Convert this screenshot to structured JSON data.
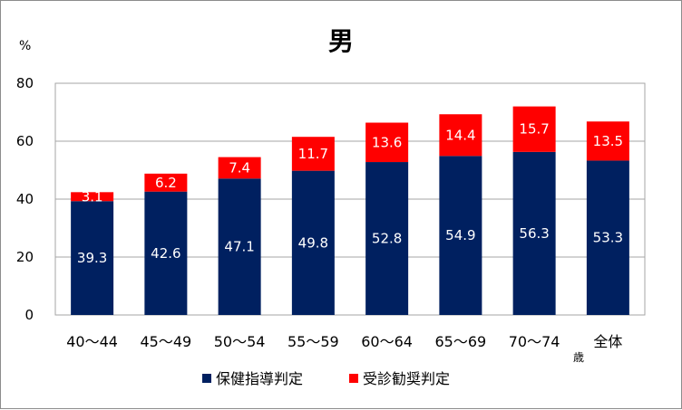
{
  "chart_data": {
    "type": "bar",
    "stacked": true,
    "title": "男",
    "ylabel": "%",
    "x_unit": "歳",
    "categories": [
      "40～44",
      "45～49",
      "50～54",
      "55～59",
      "60～64",
      "65～69",
      "70～74",
      "全体"
    ],
    "series": [
      {
        "name": "保健指導判定",
        "color": "#002060",
        "values": [
          39.3,
          42.6,
          47.1,
          49.8,
          52.8,
          54.9,
          56.3,
          53.3
        ]
      },
      {
        "name": "受診勧奨判定",
        "color": "#ff0000",
        "values": [
          3.1,
          6.2,
          7.4,
          11.7,
          13.6,
          14.4,
          15.7,
          13.5
        ]
      }
    ],
    "ylim": [
      0,
      80
    ],
    "yticks": [
      0,
      20,
      40,
      60,
      80
    ],
    "grid": true,
    "legend_position": "bottom"
  }
}
